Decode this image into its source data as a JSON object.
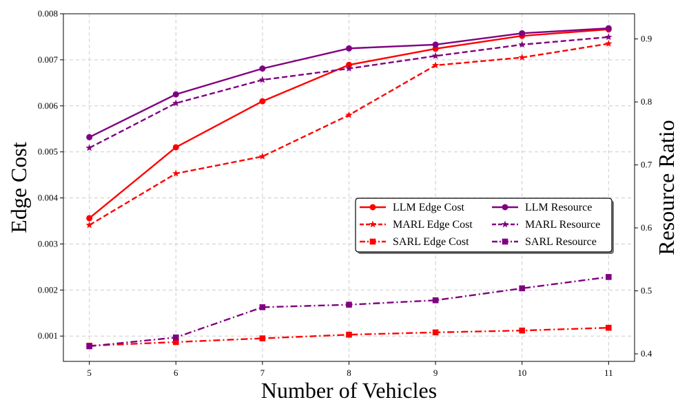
{
  "chart_data": {
    "type": "line",
    "x": [
      5,
      6,
      7,
      8,
      9,
      10,
      11
    ],
    "xlabel": "Number of Vehicles",
    "ylabel": "Edge Cost",
    "ylabel_right": "Resource Ratio",
    "xlim": [
      4.7,
      11.3
    ],
    "ylim": [
      0.00045,
      0.008
    ],
    "ylim_right": [
      0.388,
      0.94
    ],
    "x_ticks": [
      5,
      6,
      7,
      8,
      9,
      10,
      11
    ],
    "y_ticks": [
      0.001,
      0.002,
      0.003,
      0.004,
      0.005,
      0.006,
      0.007,
      0.008
    ],
    "y_tick_labels": [
      "0.001",
      "0.002",
      "0.003",
      "0.004",
      "0.005",
      "0.006",
      "0.007",
      "0.008"
    ],
    "y_right_ticks": [
      0.4,
      0.5,
      0.6,
      0.7,
      0.8,
      0.9
    ],
    "y_right_tick_labels": [
      "0.4",
      "0.5",
      "0.6",
      "0.7",
      "0.8",
      "0.9"
    ],
    "grid": true,
    "legend_position": "center-right",
    "series": [
      {
        "name": "LLM Edge Cost",
        "axis": "left",
        "color": "#ff0000",
        "line": "solid",
        "marker": "circle",
        "values": [
          0.00356,
          0.0051,
          0.0061,
          0.00689,
          0.00724,
          0.00752,
          0.00766
        ]
      },
      {
        "name": "MARL Edge Cost",
        "axis": "left",
        "color": "#ff0000",
        "line": "dashed",
        "marker": "star",
        "values": [
          0.00341,
          0.00453,
          0.0049,
          0.0058,
          0.00688,
          0.00705,
          0.00735
        ]
      },
      {
        "name": "SARL Edge Cost",
        "axis": "left",
        "color": "#ff0000",
        "line": "dashdot",
        "marker": "square",
        "values": [
          0.00079,
          0.00087,
          0.00095,
          0.00103,
          0.00108,
          0.00112,
          0.00118
        ]
      },
      {
        "name": "LLM Resource",
        "axis": "right",
        "color": "#800080",
        "line": "solid",
        "marker": "circle",
        "values": [
          0.744,
          0.812,
          0.853,
          0.885,
          0.891,
          0.909,
          0.917
        ]
      },
      {
        "name": "MARL Resource",
        "axis": "right",
        "color": "#800080",
        "line": "dashed",
        "marker": "star",
        "values": [
          0.727,
          0.798,
          0.835,
          0.853,
          0.873,
          0.891,
          0.903
        ]
      },
      {
        "name": "SARL Resource",
        "axis": "right",
        "color": "#800080",
        "line": "dashdot",
        "marker": "square",
        "values": [
          0.412,
          0.426,
          0.474,
          0.478,
          0.485,
          0.504,
          0.522
        ]
      }
    ]
  }
}
